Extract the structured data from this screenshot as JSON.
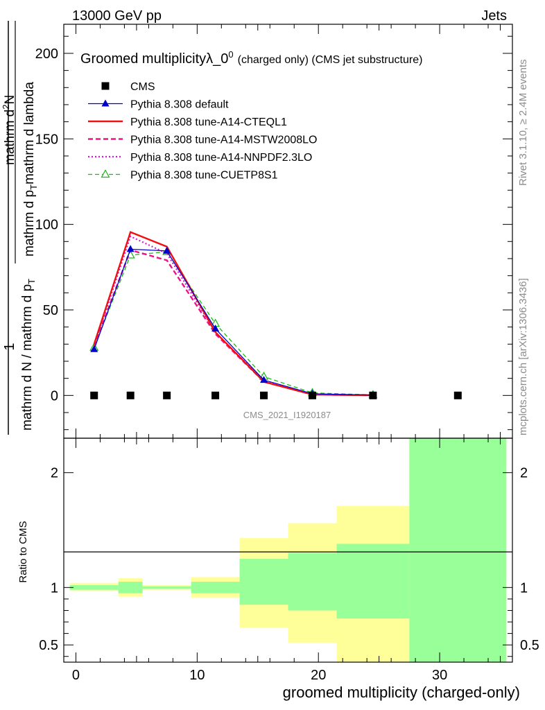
{
  "header": {
    "left": "13000 GeV pp",
    "right": "Jets"
  },
  "side_text": {
    "rivet": "Rivet 3.1.10, ≥ 2.4M events",
    "mcplots": "mcplots.cern.ch [arXiv:1306.3436]"
  },
  "main_title_prefix": "Groomed multiplicityλ_0",
  "main_title_sup": "0",
  "main_title_suffix": "(charged only) (CMS jet substructure)",
  "watermark": "CMS_2021_I1920187",
  "ylabel_top": {
    "numerator": "1",
    "denominator": "mathrm d N / mathrm d p",
    "denominator_sub": "T",
    "upper_left": "mathrm d",
    "upper_sup": "2",
    "upper_right": "N",
    "lower_left": "mathrm d p",
    "lower_sub": "T",
    "lower_right": "mathrm d lambda"
  },
  "ratio_ylabel": "Ratio to CMS",
  "xlabel": "groomed multiplicity (charged-only)",
  "colors": {
    "cms": "#000000",
    "default": "#0000cc",
    "cteql1": "#ee1111",
    "mstw": "#ee1188",
    "nnpdf": "#dd11dd",
    "cuetp": "#11bb11",
    "band_yellow": "#ffff99",
    "band_green": "#99ff99"
  },
  "chart_data": {
    "type": "line",
    "x_tick_labels": [
      "0",
      "10",
      "20",
      "30"
    ],
    "y_tick_labels_main": [
      "0",
      "50",
      "100",
      "150",
      "200"
    ],
    "y_tick_labels_ratio": [
      "0.5",
      "1",
      "2"
    ],
    "xlim": [
      -1,
      36
    ],
    "ylim_main": [
      -25,
      217
    ],
    "ylim_ratio": [
      0.35,
      2.3
    ],
    "bin_edges": [
      -0.5,
      3.5,
      5.5,
      9.5,
      13.5,
      17.5,
      21.5,
      27.5,
      35.5
    ],
    "bin_centers": [
      1.5,
      4.5,
      7.5,
      11.5,
      15.5,
      19.5,
      24.5,
      31.5
    ],
    "legend_placement": "top-left",
    "series": [
      {
        "name": "CMS",
        "key": "cms",
        "style": "marker-square",
        "values": [
          0,
          0,
          0,
          0,
          0,
          0,
          0,
          0
        ]
      },
      {
        "name": "Pythia 8.308 default",
        "key": "default",
        "style": "solid-triangle",
        "values": [
          27,
          85.5,
          84.5,
          39,
          9,
          1,
          0.2,
          null
        ]
      },
      {
        "name": "Pythia 8.308 tune-A14-CTEQL1",
        "key": "cteql1",
        "style": "solid-thick",
        "values": [
          30,
          95.5,
          87,
          37,
          8,
          0.5,
          0.1,
          null
        ]
      },
      {
        "name": "Pythia 8.308 tune-A14-MSTW2008LO",
        "key": "mstw",
        "style": "dashed-thick",
        "values": [
          29,
          85,
          79,
          36,
          8,
          0.5,
          0.1,
          null
        ]
      },
      {
        "name": "Pythia 8.308 tune-A14-NNPDF2.3LO",
        "key": "nnpdf",
        "style": "dotted",
        "values": [
          29,
          93,
          83,
          37,
          8.5,
          0.5,
          0.1,
          null
        ]
      },
      {
        "name": "Pythia 8.308 tune-CUETP8S1",
        "key": "cuetp",
        "style": "dashed-open-triangle",
        "values": [
          28,
          82,
          84,
          42,
          11,
          1.5,
          0.3,
          null
        ]
      }
    ],
    "ratio_bands": [
      {
        "lo": [
          0.97,
          0.92,
          0.98,
          0.91,
          0.65,
          0.52,
          0.35,
          0.35
        ],
        "hi": [
          1.04,
          1.08,
          1.02,
          1.09,
          1.43,
          1.56,
          1.71,
          2.3
        ],
        "color": "band_yellow"
      },
      {
        "lo": [
          0.98,
          0.95,
          0.99,
          0.95,
          0.85,
          0.8,
          0.73,
          0.35
        ],
        "hi": [
          1.02,
          1.05,
          1.01,
          1.05,
          1.25,
          1.3,
          1.38,
          2.3
        ],
        "color": "band_green"
      }
    ]
  }
}
